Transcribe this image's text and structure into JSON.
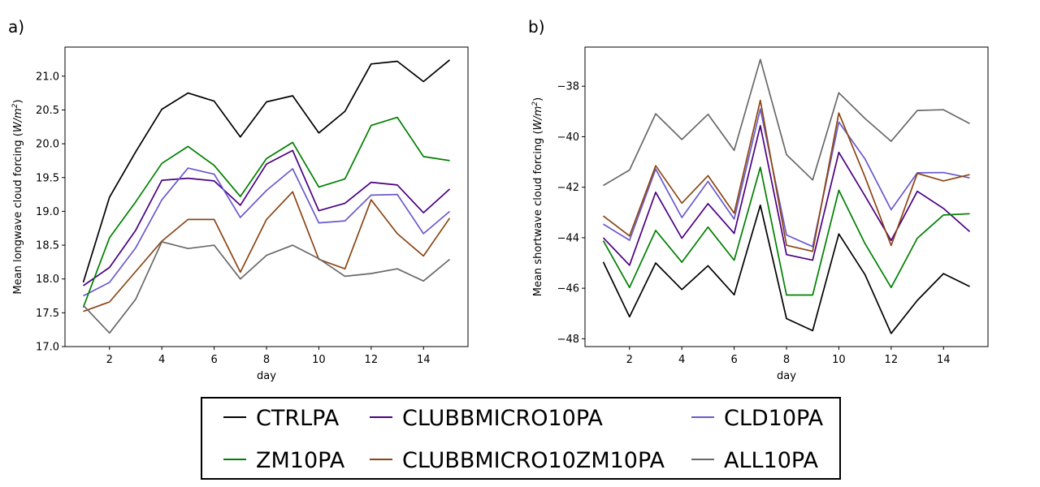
{
  "chart_data": [
    {
      "type": "line",
      "panel_label": "a)",
      "xlabel": "day",
      "ylabel": "Mean longwave cloud forcing (",
      "ylabel_unit_main": "W/m",
      "ylabel_unit_sup": "2",
      "ylabel_close": ")",
      "xlim": [
        0.3,
        15.7
      ],
      "ylim": [
        17.0,
        21.43
      ],
      "xticks": [
        2,
        4,
        6,
        8,
        10,
        12,
        14
      ],
      "yticks": [
        17.0,
        17.5,
        18.0,
        18.5,
        19.0,
        19.5,
        20.0,
        20.5,
        21.0
      ],
      "x": [
        1,
        2,
        3,
        4,
        5,
        6,
        7,
        8,
        9,
        10,
        11,
        12,
        13,
        14,
        15
      ],
      "series": [
        {
          "name": "CTRLPA",
          "color": "#000000",
          "values": [
            17.95,
            19.21,
            19.88,
            20.51,
            20.75,
            20.63,
            20.1,
            20.62,
            20.71,
            20.16,
            20.48,
            21.18,
            21.22,
            20.92,
            21.24
          ]
        },
        {
          "name": "CLUBBMICRO10PA",
          "color": "#4b0082",
          "values": [
            17.9,
            18.17,
            18.72,
            19.46,
            19.49,
            19.45,
            19.09,
            19.7,
            19.9,
            19.01,
            19.12,
            19.43,
            19.39,
            18.98,
            19.33
          ]
        },
        {
          "name": "CLD10PA",
          "color": "#6a5acd",
          "values": [
            17.75,
            17.95,
            18.46,
            19.17,
            19.64,
            19.55,
            18.91,
            19.31,
            19.63,
            18.83,
            18.86,
            19.24,
            19.25,
            18.67,
            19.0
          ]
        },
        {
          "name": "ZM10PA",
          "color": "#008000",
          "values": [
            17.58,
            18.61,
            19.14,
            19.71,
            19.96,
            19.68,
            19.22,
            19.78,
            20.02,
            19.36,
            19.48,
            20.27,
            20.39,
            19.81,
            19.75
          ]
        },
        {
          "name": "CLUBBMICRO10ZM10PA",
          "color": "#8b4513",
          "values": [
            17.52,
            17.66,
            18.11,
            18.56,
            18.88,
            18.88,
            18.1,
            18.88,
            19.29,
            18.29,
            18.15,
            19.17,
            18.67,
            18.34,
            18.9
          ]
        },
        {
          "name": "ALL10PA",
          "color": "#696969",
          "values": [
            17.61,
            17.2,
            17.7,
            18.55,
            18.45,
            18.5,
            18.0,
            18.35,
            18.5,
            18.3,
            18.04,
            18.08,
            18.15,
            17.97,
            18.29
          ]
        }
      ]
    },
    {
      "type": "line",
      "panel_label": "b)",
      "xlabel": "day",
      "ylabel": "Mean shortwave cloud forcing (",
      "ylabel_unit_main": "W/m",
      "ylabel_unit_sup": "2",
      "ylabel_close": ")",
      "xlim": [
        0.3,
        15.7
      ],
      "ylim": [
        -48.31,
        -36.45
      ],
      "xticks": [
        2,
        4,
        6,
        8,
        10,
        12,
        14
      ],
      "yticks": [
        -48,
        -46,
        -44,
        -42,
        -40,
        -38
      ],
      "ytick_labels": [
        "−48",
        "−46",
        "−44",
        "−42",
        "−40",
        "−38"
      ],
      "x": [
        1,
        2,
        3,
        4,
        5,
        6,
        7,
        8,
        9,
        10,
        11,
        12,
        13,
        14,
        15
      ],
      "series": [
        {
          "name": "CTRLPA",
          "color": "#000000",
          "values": [
            -44.96,
            -47.13,
            -45.0,
            -46.05,
            -45.11,
            -46.26,
            -42.71,
            -47.2,
            -47.68,
            -43.85,
            -45.46,
            -47.79,
            -46.48,
            -45.42,
            -45.93
          ]
        },
        {
          "name": "CLUBBMICRO10PA",
          "color": "#4b0082",
          "values": [
            -44.0,
            -45.09,
            -42.2,
            -44.02,
            -42.65,
            -43.83,
            -39.56,
            -44.67,
            -44.89,
            -40.62,
            -42.34,
            -44.11,
            -42.16,
            -42.84,
            -43.76
          ]
        },
        {
          "name": "CLD10PA",
          "color": "#6a5acd",
          "values": [
            -43.46,
            -44.1,
            -41.28,
            -43.2,
            -41.77,
            -43.26,
            -38.9,
            -43.89,
            -44.35,
            -39.42,
            -40.88,
            -42.89,
            -41.43,
            -41.42,
            -41.63
          ]
        },
        {
          "name": "ZM10PA",
          "color": "#008000",
          "values": [
            -44.12,
            -45.97,
            -43.71,
            -44.97,
            -43.58,
            -44.89,
            -41.21,
            -46.27,
            -46.27,
            -42.12,
            -44.23,
            -45.97,
            -44.02,
            -43.1,
            -43.05
          ]
        },
        {
          "name": "CLUBBMICRO10ZM10PA",
          "color": "#8b4513",
          "values": [
            -43.14,
            -43.93,
            -41.15,
            -42.63,
            -41.54,
            -43.03,
            -38.56,
            -44.3,
            -44.54,
            -39.06,
            -41.59,
            -44.31,
            -41.45,
            -41.75,
            -41.5
          ]
        },
        {
          "name": "ALL10PA",
          "color": "#696969",
          "values": [
            -41.93,
            -41.32,
            -39.09,
            -40.11,
            -39.11,
            -40.54,
            -36.94,
            -40.71,
            -41.71,
            -38.26,
            -39.28,
            -40.18,
            -38.96,
            -38.93,
            -39.48
          ]
        }
      ]
    }
  ],
  "legend": {
    "items": [
      "CTRLPA",
      "CLUBBMICRO10PA",
      "CLD10PA",
      "ZM10PA",
      "CLUBBMICRO10ZM10PA",
      "ALL10PA"
    ],
    "colors": [
      "#000000",
      "#4b0082",
      "#6a5acd",
      "#008000",
      "#8b4513",
      "#696969"
    ]
  }
}
